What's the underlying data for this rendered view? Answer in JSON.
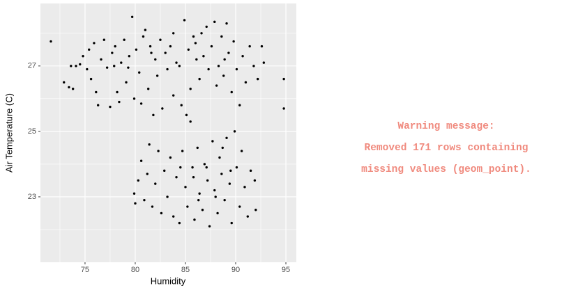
{
  "chart_data": {
    "type": "scatter",
    "xlabel": "Humidity",
    "ylabel": "Air Temperature (C)",
    "annotations": [
      "Warning message:",
      "Removed 171 rows containing",
      "missing values (geom_point)."
    ],
    "color": "#000000",
    "grid": true,
    "xlim": [
      70.56,
      96.04
    ],
    "xticks": [
      75,
      80,
      85,
      90,
      95
    ],
    "ylim": [
      21.0,
      28.91
    ],
    "yticks": [
      23,
      25,
      27
    ],
    "x": [
      71.6,
      72.9,
      73.4,
      73.6,
      73.8,
      74.1,
      74.5,
      74.8,
      75.2,
      75.4,
      75.6,
      75.9,
      76.1,
      76.3,
      76.6,
      76.9,
      77.2,
      77.5,
      77.7,
      78.0,
      78.2,
      78.4,
      78.6,
      78.9,
      79.1,
      79.4,
      79.7,
      79.9,
      80.1,
      80.4,
      80.6,
      80.8,
      81.0,
      81.3,
      81.5,
      81.8,
      82.0,
      82.2,
      82.5,
      82.7,
      83.0,
      83.2,
      83.5,
      83.8,
      84.1,
      84.4,
      84.6,
      84.9,
      85.1,
      85.3,
      85.5,
      85.8,
      86.1,
      86.4,
      86.6,
      86.8,
      87.1,
      87.3,
      87.6,
      87.9,
      88.1,
      88.3,
      88.6,
      88.8,
      89.1,
      89.3,
      89.6,
      89.8,
      90.1,
      90.4,
      90.7,
      91.0,
      91.4,
      91.8,
      92.2,
      92.6,
      92.8,
      94.8,
      94.8,
      81.6,
      83.8,
      86.0,
      88.9,
      77.9,
      79.3,
      79.9,
      80.0,
      80.3,
      80.6,
      80.9,
      81.2,
      81.4,
      81.7,
      82.0,
      82.3,
      82.6,
      82.9,
      83.2,
      83.5,
      83.8,
      84.1,
      84.4,
      84.7,
      85.0,
      85.2,
      85.5,
      85.7,
      85.9,
      86.2,
      86.4,
      86.7,
      86.9,
      87.2,
      87.4,
      87.7,
      87.9,
      88.2,
      88.4,
      88.6,
      88.9,
      89.1,
      89.4,
      89.6,
      89.9,
      90.1,
      90.4,
      90.6,
      90.9,
      91.2,
      91.5,
      91.9,
      92.0,
      85.8,
      87.1,
      88.0,
      86.3,
      84.5,
      88.7,
      89.5
    ],
    "values": [
      27.75,
      26.5,
      26.35,
      27.0,
      26.3,
      27.0,
      27.05,
      27.3,
      26.9,
      27.5,
      26.6,
      27.7,
      26.2,
      25.8,
      27.2,
      27.8,
      26.95,
      25.75,
      27.4,
      27.6,
      26.2,
      25.9,
      27.1,
      27.8,
      26.5,
      27.3,
      28.5,
      26.0,
      27.5,
      26.8,
      25.85,
      27.9,
      28.1,
      26.3,
      27.6,
      25.5,
      27.2,
      26.7,
      27.8,
      25.7,
      27.4,
      26.9,
      27.6,
      26.1,
      27.1,
      27.0,
      25.8,
      28.4,
      25.5,
      27.5,
      26.3,
      27.9,
      27.2,
      26.6,
      28.0,
      27.3,
      28.2,
      26.9,
      27.6,
      28.35,
      26.4,
      27.0,
      27.9,
      26.7,
      28.3,
      27.4,
      26.2,
      27.75,
      26.9,
      25.8,
      27.3,
      26.5,
      27.6,
      27.0,
      26.6,
      27.6,
      27.1,
      26.6,
      25.7,
      27.4,
      28.0,
      27.7,
      27.2,
      27.0,
      26.95,
      23.1,
      22.8,
      23.5,
      24.1,
      22.9,
      23.7,
      24.6,
      22.7,
      23.4,
      24.4,
      22.5,
      23.8,
      23.0,
      24.2,
      22.4,
      23.6,
      22.2,
      24.4,
      23.3,
      22.7,
      25.3,
      23.9,
      22.3,
      24.5,
      23.1,
      22.6,
      24.0,
      23.5,
      22.1,
      24.7,
      23.2,
      22.5,
      24.2,
      23.7,
      22.9,
      24.8,
      23.4,
      22.2,
      25.0,
      23.9,
      22.7,
      24.4,
      23.3,
      22.4,
      23.8,
      23.5,
      22.6,
      23.6,
      23.9,
      23.0,
      22.9,
      23.9,
      24.5,
      23.8
    ]
  }
}
